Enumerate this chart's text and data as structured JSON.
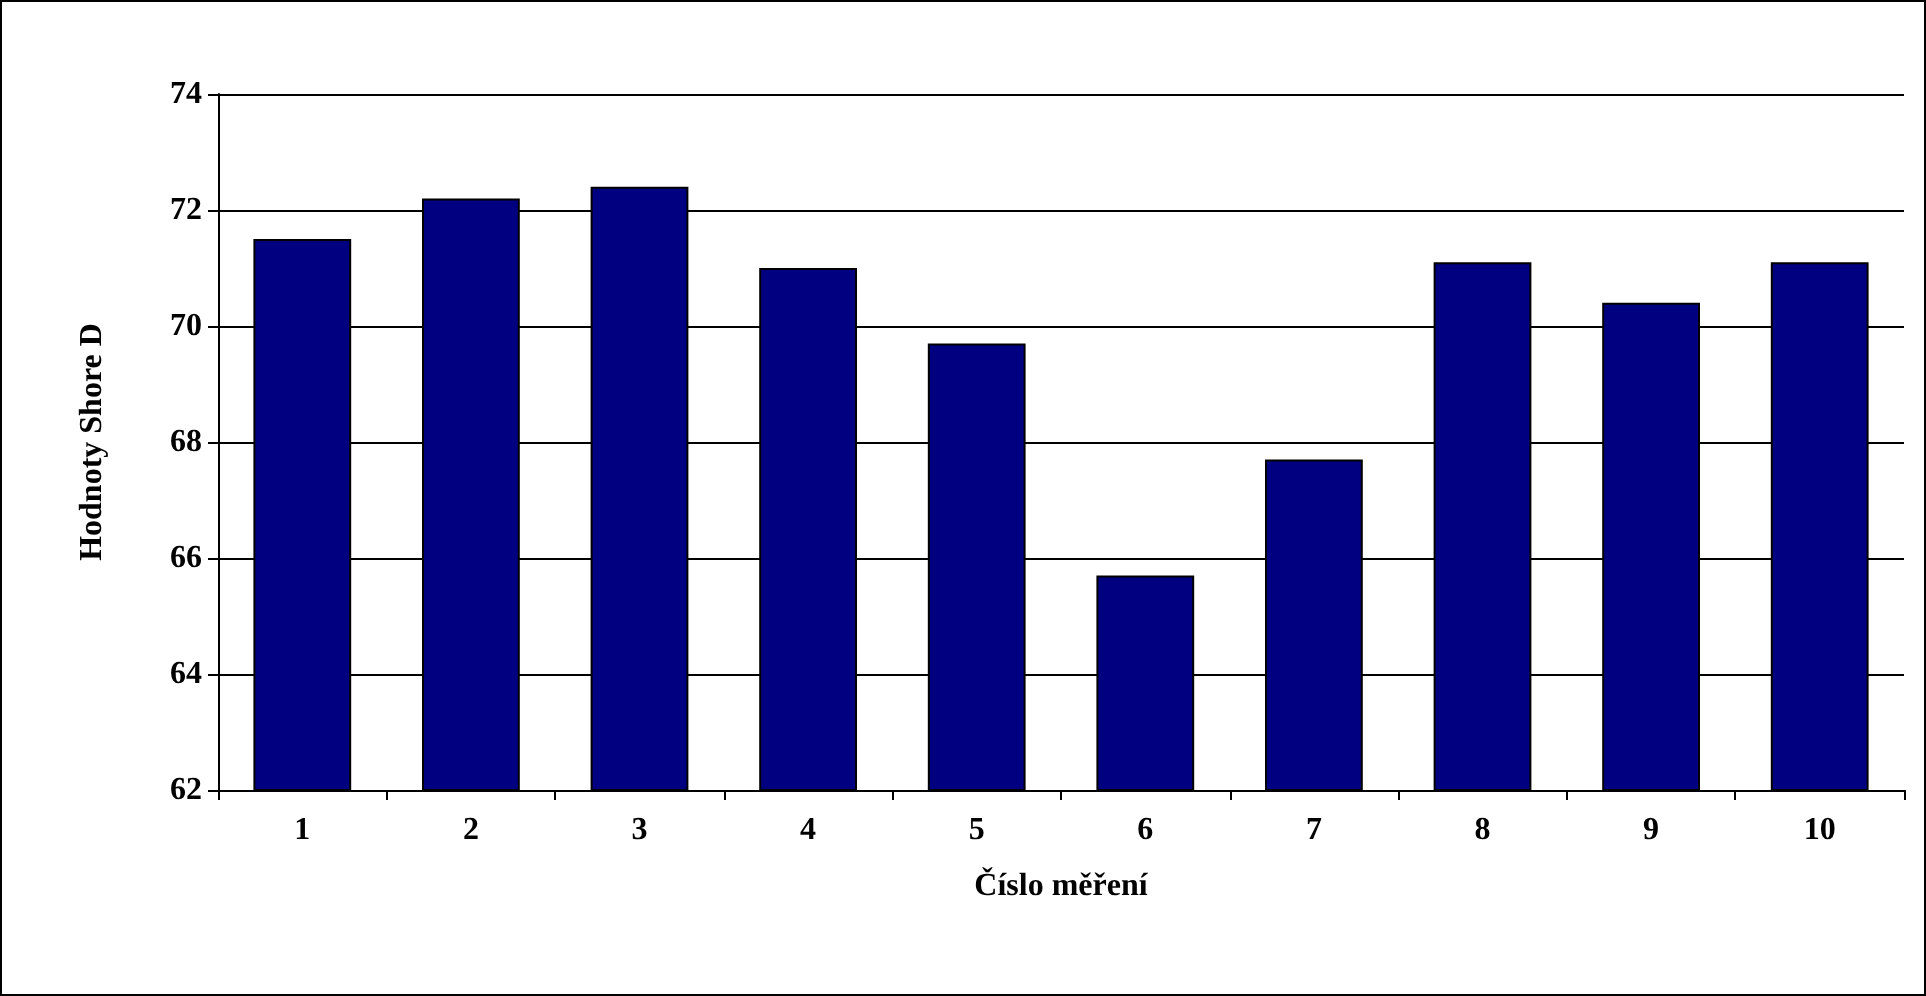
{
  "chart_data": {
    "type": "bar",
    "xlabel": "Číslo měření",
    "ylabel": "Hodnoty Shore D",
    "categories": [
      "1",
      "2",
      "3",
      "4",
      "5",
      "6",
      "7",
      "8",
      "9",
      "10"
    ],
    "values": [
      71.5,
      72.2,
      72.4,
      71.0,
      69.7,
      65.7,
      67.7,
      71.1,
      70.4,
      71.1
    ],
    "color": "#000080",
    "ylim": [
      62,
      74
    ],
    "yticks": [
      62,
      64,
      66,
      68,
      70,
      72,
      74
    ],
    "grid": "y"
  }
}
